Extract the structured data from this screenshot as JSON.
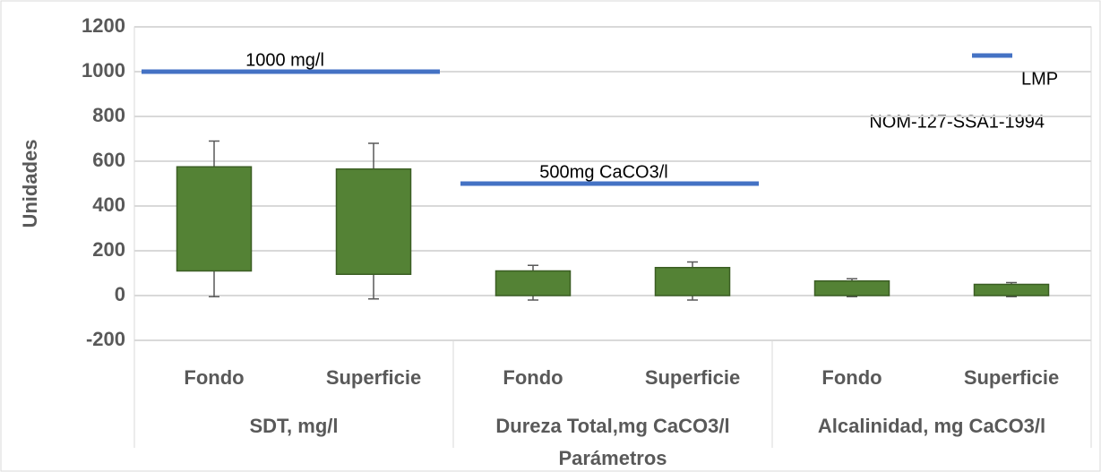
{
  "chart_data": {
    "type": "box",
    "x_label": "Parámetros",
    "y_label": "Unidades",
    "groups": [
      "SDT, mg/l",
      "Dureza Total,mg CaCO3/l",
      "Alcalinidad, mg CaCO3/l"
    ],
    "categories": [
      "Fondo",
      "Superficie",
      "Fondo",
      "Superficie",
      "Fondo",
      "Superficie"
    ],
    "box_bottom": [
      110,
      95,
      0,
      0,
      0,
      0
    ],
    "box_top": [
      575,
      565,
      110,
      125,
      65,
      50
    ],
    "whisker_min": [
      -5,
      -15,
      -20,
      -20,
      -5,
      -5
    ],
    "whisker_max": [
      690,
      680,
      135,
      150,
      75,
      58
    ],
    "color": "#548235",
    "limit_series": {
      "name": "LMP",
      "color": "#4472c4",
      "values": [
        1000,
        500,
        null
      ]
    },
    "annotations": [
      "1000 mg/l",
      "500mg CaCO3/l",
      "NOM-127-SSA1-1994"
    ],
    "ylim": [
      -200,
      1200
    ],
    "yticks": [
      -200,
      0,
      200,
      400,
      600,
      800,
      1000,
      1200
    ],
    "grid": true,
    "legend": "top-right"
  }
}
